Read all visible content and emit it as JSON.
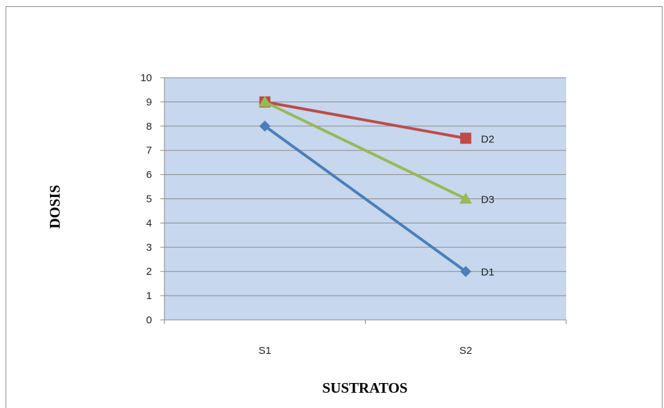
{
  "chart_data": {
    "type": "line",
    "title": "",
    "xlabel": "SUSTRATOS",
    "ylabel": "DOSIS",
    "categories": [
      "S1",
      "S2"
    ],
    "ylim": [
      0,
      10
    ],
    "yticks": [
      "0",
      "1",
      "2",
      "3",
      "4",
      "5",
      "6",
      "7",
      "8",
      "9",
      "10"
    ],
    "grid": true,
    "plot_background": "#c6d7ee",
    "series": [
      {
        "name": "D1",
        "values": [
          8,
          2
        ],
        "color": "#4a7ebb",
        "marker": "diamond"
      },
      {
        "name": "D2",
        "values": [
          9,
          7.5
        ],
        "color": "#be4b48",
        "marker": "square"
      },
      {
        "name": "D3",
        "values": [
          9,
          5
        ],
        "color": "#98b954",
        "marker": "triangle"
      }
    ]
  }
}
